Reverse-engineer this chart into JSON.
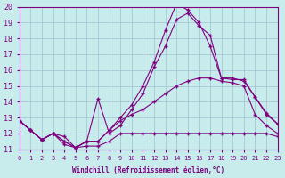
{
  "xlabel": "Windchill (Refroidissement éolien,°C)",
  "background_color": "#c8ecec",
  "grid_color": "#a0c0d0",
  "line_color": "#800080",
  "xlim": [
    0,
    23
  ],
  "ylim": [
    11,
    20
  ],
  "yticks": [
    11,
    12,
    13,
    14,
    15,
    16,
    17,
    18,
    19,
    20
  ],
  "xticks": [
    0,
    1,
    2,
    3,
    4,
    5,
    6,
    7,
    8,
    9,
    10,
    11,
    12,
    13,
    14,
    15,
    16,
    17,
    18,
    19,
    20,
    21,
    22,
    23
  ],
  "lines": [
    {
      "x": [
        0,
        1,
        2,
        3,
        4,
        5,
        6,
        7,
        8,
        9,
        10,
        11,
        12,
        13,
        14,
        15,
        16,
        17,
        18,
        19,
        20,
        21,
        22,
        23
      ],
      "y": [
        12.8,
        12.2,
        11.6,
        12.0,
        11.8,
        11.1,
        11.2,
        11.2,
        11.5,
        12.0,
        12.0,
        12.0,
        12.0,
        12.0,
        12.0,
        12.0,
        12.0,
        12.0,
        12.0,
        12.0,
        12.0,
        12.0,
        12.0,
        11.8
      ]
    },
    {
      "x": [
        0,
        1,
        2,
        3,
        4,
        5,
        6,
        7,
        8,
        9,
        10,
        11,
        12,
        13,
        14,
        15,
        16,
        17,
        18,
        19,
        20,
        21,
        22,
        23
      ],
      "y": [
        12.8,
        12.2,
        11.6,
        12.0,
        11.3,
        11.1,
        11.5,
        11.5,
        12.2,
        12.8,
        13.2,
        13.5,
        14.0,
        14.5,
        15.0,
        15.3,
        15.5,
        15.5,
        15.3,
        15.2,
        15.0,
        13.2,
        12.5,
        12.0
      ]
    },
    {
      "x": [
        0,
        1,
        2,
        3,
        4,
        5,
        6,
        7,
        8,
        9,
        10,
        11,
        12,
        13,
        14,
        15,
        16,
        17,
        18,
        19,
        20,
        21,
        22,
        23
      ],
      "y": [
        12.8,
        12.2,
        11.6,
        12.0,
        11.5,
        11.1,
        11.5,
        14.2,
        12.0,
        12.5,
        13.5,
        14.5,
        16.2,
        17.5,
        19.2,
        19.6,
        18.8,
        18.2,
        15.5,
        15.4,
        15.4,
        14.3,
        13.3,
        12.6
      ]
    },
    {
      "x": [
        0,
        1,
        2,
        3,
        4,
        5,
        6,
        7,
        8,
        9,
        10,
        11,
        12,
        13,
        14,
        15,
        16,
        17,
        18,
        19,
        20,
        21,
        22,
        23
      ],
      "y": [
        12.8,
        12.2,
        11.6,
        12.0,
        11.5,
        11.1,
        11.5,
        11.5,
        12.2,
        13.0,
        13.8,
        15.0,
        16.5,
        18.5,
        20.2,
        19.8,
        19.0,
        17.5,
        15.5,
        15.5,
        15.3,
        14.3,
        13.2,
        12.6
      ]
    }
  ]
}
